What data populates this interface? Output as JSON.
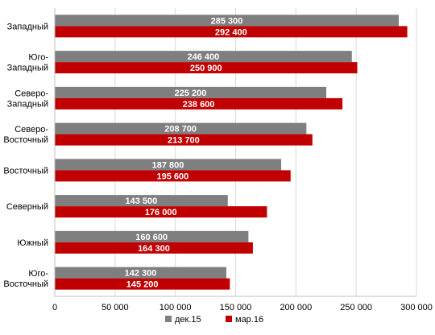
{
  "chart_data": {
    "type": "bar",
    "orientation": "horizontal",
    "categories": [
      [
        "Западный"
      ],
      [
        "Юго-",
        "Западный"
      ],
      [
        "Северо-",
        "Западный"
      ],
      [
        "Северо-",
        "Восточный"
      ],
      [
        "Восточный"
      ],
      [
        "Северный"
      ],
      [
        "Южный"
      ],
      [
        "Юго-",
        "Восточный"
      ]
    ],
    "series": [
      {
        "name": "дек.15",
        "color": "#7f7f7f",
        "values": [
          285300,
          246400,
          225200,
          208700,
          187800,
          143500,
          160600,
          142300
        ],
        "labels": [
          "285 300",
          "246 400",
          "225 200",
          "208 700",
          "187 800",
          "143 500",
          "160 600",
          "142 300"
        ]
      },
      {
        "name": "мар.16",
        "color": "#c00000",
        "values": [
          292400,
          250900,
          238600,
          213700,
          195600,
          176000,
          164300,
          145200
        ],
        "labels": [
          "292 400",
          "250 900",
          "238 600",
          "213 700",
          "195 600",
          "176 000",
          "164 300",
          "145 200"
        ]
      }
    ],
    "xlim": [
      0,
      300000
    ],
    "xticks": [
      0,
      50000,
      100000,
      150000,
      200000,
      250000,
      300000
    ],
    "xtick_labels": [
      "0",
      "50 000",
      "100 000",
      "150 000",
      "200 000",
      "250 000",
      "300 000"
    ],
    "grid": "vertical",
    "legend": "bottom"
  }
}
